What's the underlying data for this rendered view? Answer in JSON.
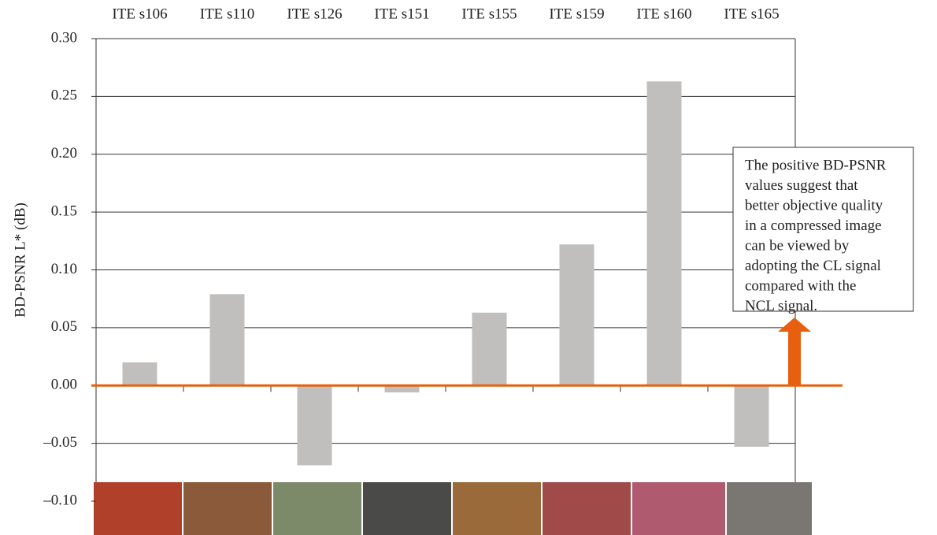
{
  "chart_data": {
    "type": "bar",
    "y_label": "BD-PSNR L* (dB)",
    "categories": [
      "ITE s106",
      "ITE s110",
      "ITE s126",
      "ITE s151",
      "ITE s155",
      "ITE s159",
      "ITE s160",
      "ITE s165"
    ],
    "values": [
      0.02,
      0.079,
      -0.069,
      -0.006,
      0.063,
      0.122,
      0.263,
      -0.053
    ],
    "color": "#c0bfbe",
    "ylim": [
      -0.1,
      0.3
    ],
    "yticks": [
      {
        "value": 0.3,
        "label": "0.30"
      },
      {
        "value": 0.25,
        "label": "0.25"
      },
      {
        "value": 0.2,
        "label": "0.20"
      },
      {
        "value": 0.15,
        "label": "0.15"
      },
      {
        "value": 0.1,
        "label": "0.10"
      },
      {
        "value": 0.05,
        "label": "0.05"
      },
      {
        "value": 0,
        "label": "0.00"
      },
      {
        "value": -0.05,
        "label": "–0.05"
      },
      {
        "value": -0.1,
        "label": "–0.10"
      }
    ],
    "grid": true,
    "zero_line_color": "#e8600f",
    "annotation": [
      "The positive BD-PSNR",
      "values suggest that",
      "better objective quality",
      "in a compressed image",
      "can be viewed by",
      "adopting the CL signal",
      "compared with the",
      "NCL signal."
    ]
  }
}
